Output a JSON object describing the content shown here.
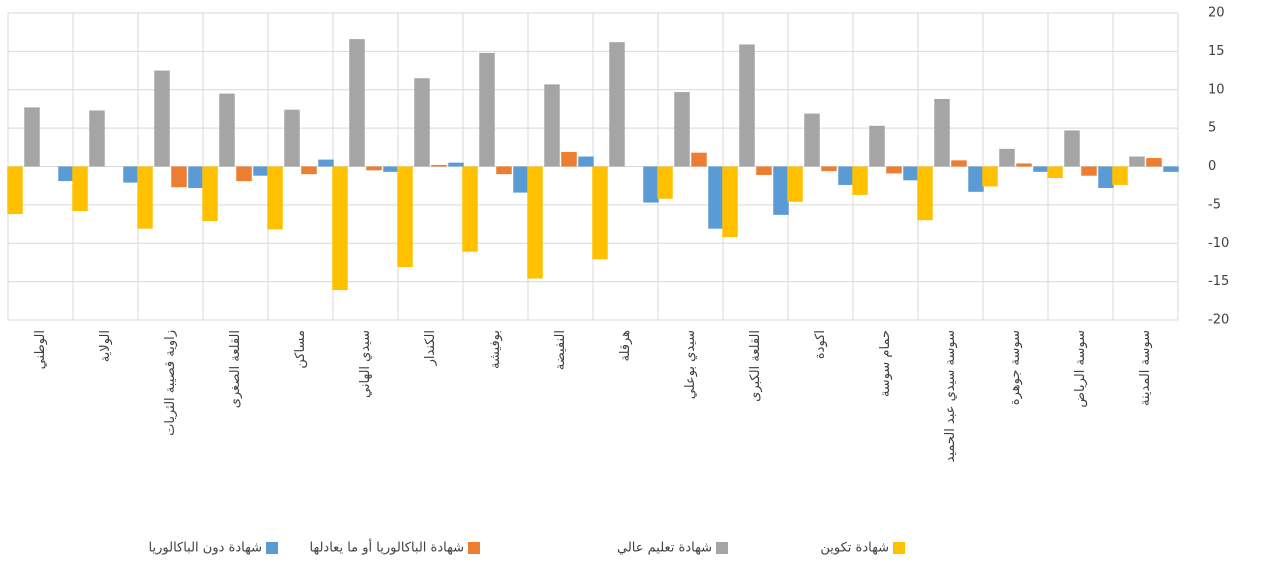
{
  "chart_data": {
    "type": "bar",
    "categories": [
      "الوطني",
      "الولاية",
      "زاوية قصيبة الثريات",
      "القلعة الصغرى",
      "مساكن",
      "سيدي الهاني",
      "الكندار",
      "بوفيشة",
      "النفيضة",
      "هرقلة",
      "سيدي بوعلي",
      "القلعة الكبرى",
      "اكودة",
      "حمام سوسة",
      "سوسة سيدي عبد الحميد",
      "سوسة جوهرة",
      "سوسة الرياض",
      "سوسة المدينة"
    ],
    "series": [
      {
        "name": "شهادة تكوين",
        "color": "#FFC000",
        "values": [
          -6.2,
          -5.8,
          -8.1,
          -7.1,
          -8.2,
          -16.1,
          -13.1,
          -11.1,
          -14.6,
          -12.1,
          -4.2,
          -9.2,
          -4.6,
          -3.7,
          -7.0,
          -2.6,
          -1.5,
          -2.4
        ]
      },
      {
        "name": "شهادة تعليم عالي",
        "color": "#A5A5A5",
        "values": [
          7.7,
          7.3,
          12.5,
          9.5,
          7.4,
          16.6,
          11.5,
          14.8,
          10.7,
          16.2,
          9.7,
          15.9,
          6.9,
          5.3,
          8.8,
          2.3,
          4.7,
          1.3
        ]
      },
      {
        "name": "شهادة الباكالوريا أو ما يعادلها",
        "color": "#ED7D31",
        "values": [
          0,
          0,
          -2.7,
          -1.9,
          -1.0,
          -0.5,
          0.2,
          -1.0,
          1.9,
          0,
          1.8,
          -1.1,
          -0.6,
          -0.9,
          0.8,
          0.4,
          -1.2,
          1.1
        ]
      },
      {
        "name": "شهادة دون الباكالوريا",
        "color": "#5B9BD5",
        "values": [
          -1.9,
          -2.1,
          -2.8,
          -1.2,
          0.9,
          -0.7,
          0.5,
          -3.4,
          1.3,
          -4.7,
          -8.1,
          -6.3,
          -2.4,
          -1.8,
          -3.3,
          -0.7,
          -2.8,
          -0.7
        ]
      }
    ],
    "ylim": [
      -20,
      20
    ],
    "yticks": [
      -20,
      -15,
      -10,
      -5,
      0,
      5,
      10,
      15,
      20
    ],
    "grid": true,
    "legend": "bottom"
  }
}
